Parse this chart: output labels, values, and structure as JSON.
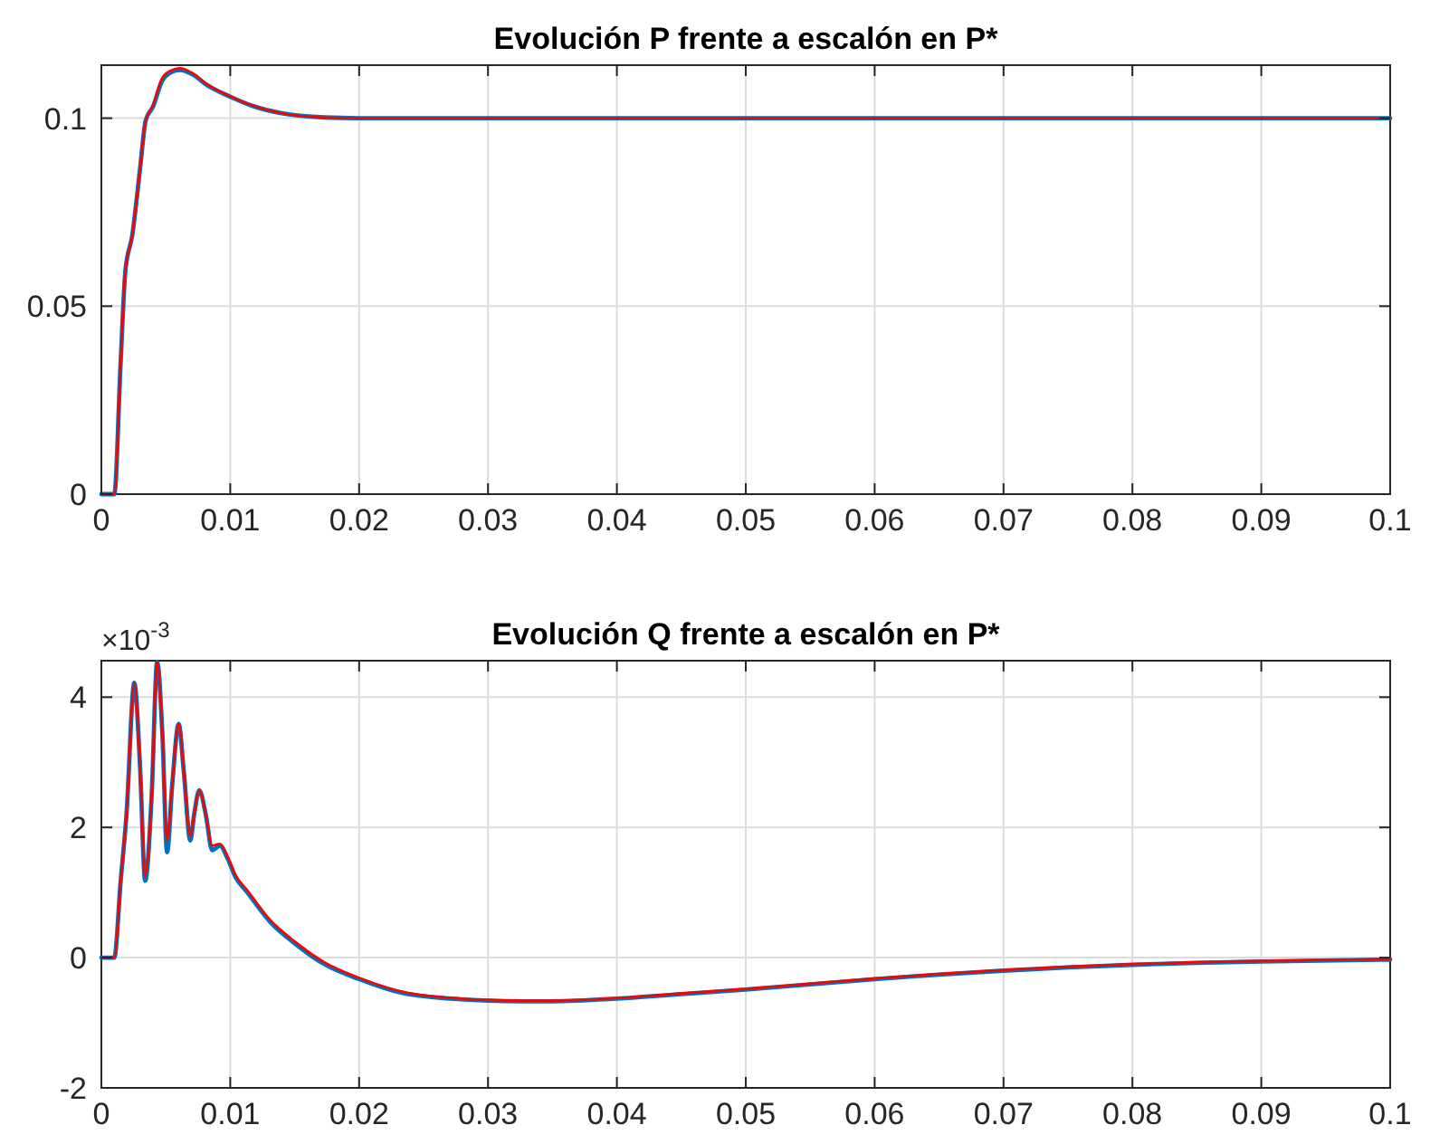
{
  "chart_data": [
    {
      "type": "line",
      "title": "Evolución P frente a escalón en P*",
      "xlim": [
        0,
        0.1
      ],
      "ylim": [
        0,
        0.1141
      ],
      "xticks": [
        0,
        0.01,
        0.02,
        0.03,
        0.04,
        0.05,
        0.06,
        0.07,
        0.08,
        0.09,
        0.1
      ],
      "yticks": [
        0,
        0.05,
        0.1
      ],
      "grid": true,
      "line_style": "solid",
      "series": [
        {
          "color": "#0072bd",
          "x": [
            0,
            0.001,
            0.0015,
            0.00186,
            0.0024,
            0.003,
            0.00344,
            0.004,
            0.0047,
            0.0054,
            0.0061,
            0.0071,
            0.0082,
            0.01,
            0.0117,
            0.014,
            0.0173,
            0.02,
            0.03,
            0.05,
            0.07,
            0.1
          ],
          "values": [
            0,
            0,
            0.0353,
            0.0593,
            0.0689,
            0.0865,
            0.0994,
            0.103,
            0.1098,
            0.1122,
            0.1128,
            0.1116,
            0.1088,
            0.1057,
            0.1033,
            0.1013,
            0.1002,
            0.1,
            0.1,
            0.1,
            0.1,
            0.1
          ]
        },
        {
          "color": "#ff0000",
          "x": [
            0,
            0.001,
            0.0015,
            0.00186,
            0.0024,
            0.003,
            0.00344,
            0.004,
            0.0047,
            0.0054,
            0.0061,
            0.0071,
            0.0082,
            0.01,
            0.0117,
            0.014,
            0.0173,
            0.02,
            0.03,
            0.05,
            0.07,
            0.1
          ],
          "values": [
            0,
            0,
            0.0353,
            0.0593,
            0.0689,
            0.0865,
            0.0994,
            0.1034,
            0.1106,
            0.1127,
            0.1133,
            0.1119,
            0.109,
            0.1058,
            0.1034,
            0.1013,
            0.1002,
            0.1,
            0.1,
            0.1,
            0.1,
            0.1
          ]
        }
      ]
    },
    {
      "type": "line",
      "title": "Evolución Q frente a escalón en P*",
      "annotations": [
        "×10$^{-3}$"
      ],
      "xlim": [
        0,
        0.1
      ],
      "ylim": [
        -2,
        4.56
      ],
      "xticks": [
        0,
        0.01,
        0.02,
        0.03,
        0.04,
        0.05,
        0.06,
        0.07,
        0.08,
        0.09,
        0.1
      ],
      "yticks": [
        -2,
        0,
        2,
        4
      ],
      "grid": true,
      "line_style": "solid",
      "series": [
        {
          "color": "#0072bd",
          "x": [
            0,
            0.001,
            0.0015,
            0.00195,
            0.00256,
            0.003,
            0.0034,
            0.0039,
            0.00433,
            0.00474,
            0.0051,
            0.0055,
            0.006,
            0.0064,
            0.0069,
            0.0072,
            0.0076,
            0.0081,
            0.0086,
            0.0092,
            0.0098,
            0.0104,
            0.0113,
            0.0131,
            0.015,
            0.0173,
            0.02,
            0.0238,
            0.03,
            0.0326,
            0.035,
            0.04,
            0.045,
            0.05,
            0.055,
            0.06,
            0.065,
            0.07,
            0.075,
            0.08,
            0.085,
            0.09,
            0.1
          ],
          "values": [
            0,
            0,
            1.18,
            2.2,
            4.22,
            2.94,
            1.18,
            2.48,
            4.54,
            3.41,
            1.62,
            2.66,
            3.59,
            2.85,
            1.8,
            2.2,
            2.57,
            2.2,
            1.65,
            1.72,
            1.52,
            1.24,
            1.01,
            0.55,
            0.22,
            -0.1,
            -0.33,
            -0.56,
            -0.66,
            -0.67,
            -0.67,
            -0.63,
            -0.56,
            -0.49,
            -0.41,
            -0.33,
            -0.26,
            -0.2,
            -0.15,
            -0.11,
            -0.08,
            -0.06,
            -0.03
          ]
        },
        {
          "color": "#ff0000",
          "x": [
            0,
            0.001,
            0.0015,
            0.00195,
            0.00256,
            0.003,
            0.0034,
            0.0039,
            0.00433,
            0.00474,
            0.0051,
            0.0055,
            0.006,
            0.0064,
            0.0069,
            0.0072,
            0.0076,
            0.0081,
            0.0086,
            0.0092,
            0.0098,
            0.0104,
            0.0113,
            0.0131,
            0.015,
            0.0173,
            0.02,
            0.0238,
            0.03,
            0.0326,
            0.035,
            0.04,
            0.045,
            0.05,
            0.055,
            0.06,
            0.065,
            0.07,
            0.075,
            0.08,
            0.085,
            0.09,
            0.1
          ],
          "values": [
            0,
            0,
            1.18,
            2.2,
            4.22,
            2.94,
            1.25,
            2.48,
            4.54,
            3.41,
            1.8,
            2.66,
            3.59,
            2.85,
            1.87,
            2.2,
            2.57,
            2.2,
            1.72,
            1.75,
            1.55,
            1.27,
            1.04,
            0.58,
            0.25,
            -0.07,
            -0.31,
            -0.54,
            -0.65,
            -0.66,
            -0.66,
            -0.62,
            -0.55,
            -0.48,
            -0.4,
            -0.32,
            -0.25,
            -0.19,
            -0.14,
            -0.1,
            -0.07,
            -0.05,
            -0.02
          ]
        }
      ]
    }
  ]
}
